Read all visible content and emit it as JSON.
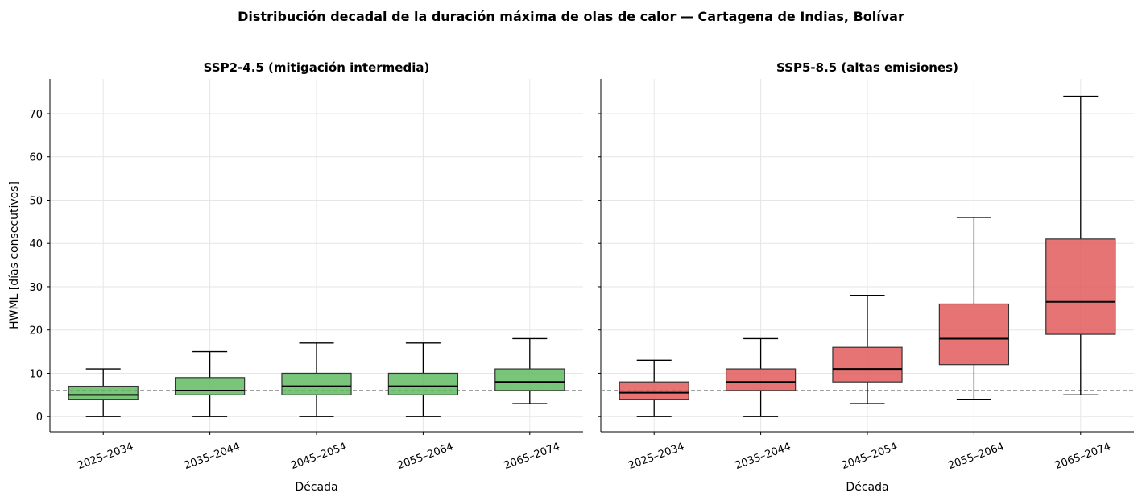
{
  "chart_data": {
    "type": "box",
    "title": "Distribución decadal de la duración máxima de olas de calor — Cartagena de Indias, Bolívar",
    "ylabel": "HWML [días consecutivos]",
    "xlabel": "Década",
    "ylim": [
      -3.5,
      78
    ],
    "yticks": [
      0,
      10,
      20,
      30,
      40,
      50,
      60,
      70
    ],
    "reference_line": {
      "value": 6,
      "style": "dashed",
      "color": "#808080"
    },
    "grid": true,
    "categories": [
      "2025–2034",
      "2035–2044",
      "2045–2054",
      "2055–2064",
      "2065–2074"
    ],
    "panels": [
      {
        "title": "SSP2-4.5 (mitigación intermedia)",
        "color": "#5cb85c",
        "boxes": [
          {
            "whislo": 0,
            "q1": 4,
            "med": 5,
            "q3": 7,
            "whishi": 11
          },
          {
            "whislo": 0,
            "q1": 5,
            "med": 6,
            "q3": 9,
            "whishi": 15
          },
          {
            "whislo": 0,
            "q1": 5,
            "med": 7,
            "q3": 10,
            "whishi": 17
          },
          {
            "whislo": 0,
            "q1": 5,
            "med": 7,
            "q3": 10,
            "whishi": 17
          },
          {
            "whislo": 3,
            "q1": 6,
            "med": 8,
            "q3": 11,
            "whishi": 18
          }
        ]
      },
      {
        "title": "SSP5-8.5 (altas emisiones)",
        "color": "#e05555",
        "boxes": [
          {
            "whislo": 0,
            "q1": 4,
            "med": 5.5,
            "q3": 8,
            "whishi": 13
          },
          {
            "whislo": 0,
            "q1": 6,
            "med": 8,
            "q3": 11,
            "whishi": 18
          },
          {
            "whislo": 3,
            "q1": 8,
            "med": 11,
            "q3": 16,
            "whishi": 28
          },
          {
            "whislo": 4,
            "q1": 12,
            "med": 18,
            "q3": 26,
            "whishi": 46
          },
          {
            "whislo": 5,
            "q1": 19,
            "med": 26.5,
            "q3": 41,
            "whishi": 74
          }
        ]
      }
    ]
  }
}
